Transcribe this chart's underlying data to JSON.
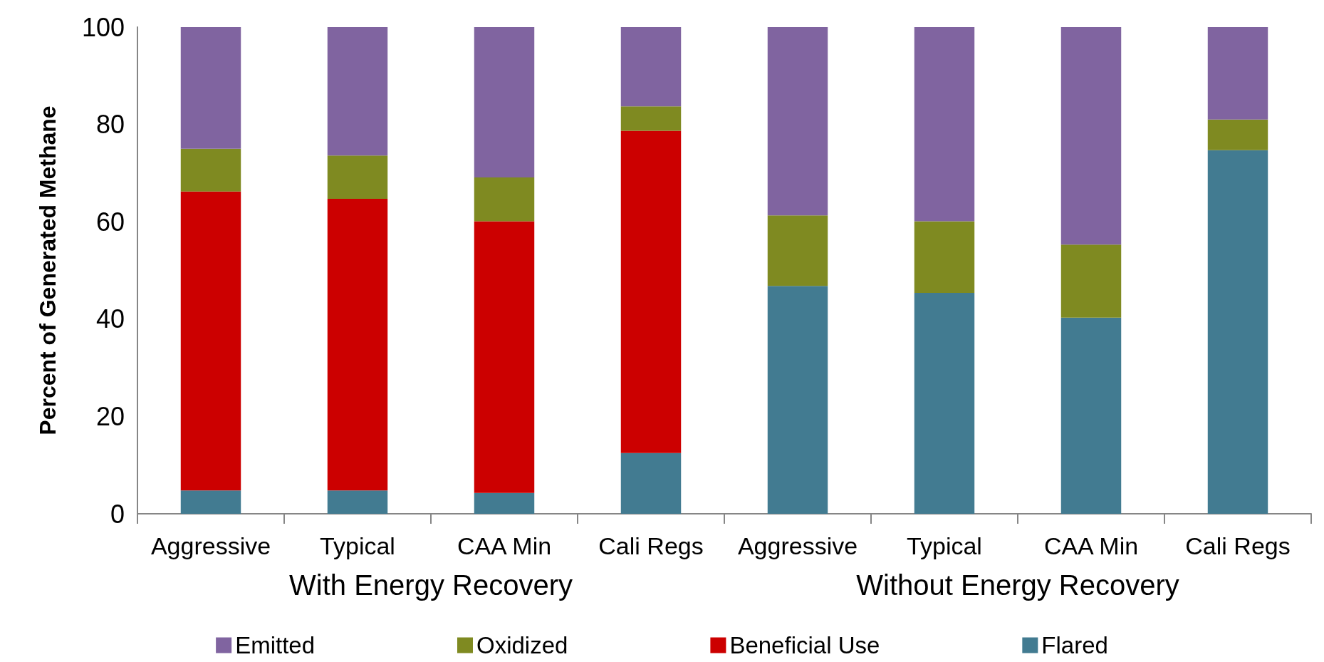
{
  "chart_data": {
    "type": "bar",
    "stacked": true,
    "ylabel": "Percent of Generated Methane",
    "categories": [
      "Aggressive",
      "Typical",
      "CAA Min",
      "Cali Regs",
      "Aggressive",
      "Typical",
      "CAA Min",
      "Cali Regs"
    ],
    "annotations": [
      "With Energy Recovery",
      "Without Energy Recovery"
    ],
    "ylim": [
      0,
      100
    ],
    "yticks": [
      0,
      20,
      40,
      60,
      80,
      100
    ],
    "grid": false,
    "legend": "bottom",
    "series": [
      {
        "name": "Flared",
        "color": "#427b91",
        "values": [
          4.8,
          4.8,
          4.3,
          12.5,
          46.8,
          45.4,
          40.3,
          74.7
        ]
      },
      {
        "name": "Beneficial Use",
        "color": "#cc0000",
        "values": [
          61.4,
          59.9,
          55.8,
          66.2,
          0,
          0,
          0,
          0
        ]
      },
      {
        "name": "Oxidized",
        "color": "#7f8a21",
        "values": [
          8.8,
          8.9,
          9.0,
          5.0,
          14.5,
          14.7,
          15.0,
          6.3
        ]
      },
      {
        "name": "Emitted",
        "color": "#8064a0",
        "values": [
          25.0,
          26.4,
          30.9,
          16.3,
          38.7,
          39.9,
          45.0,
          19.0
        ]
      }
    ]
  }
}
